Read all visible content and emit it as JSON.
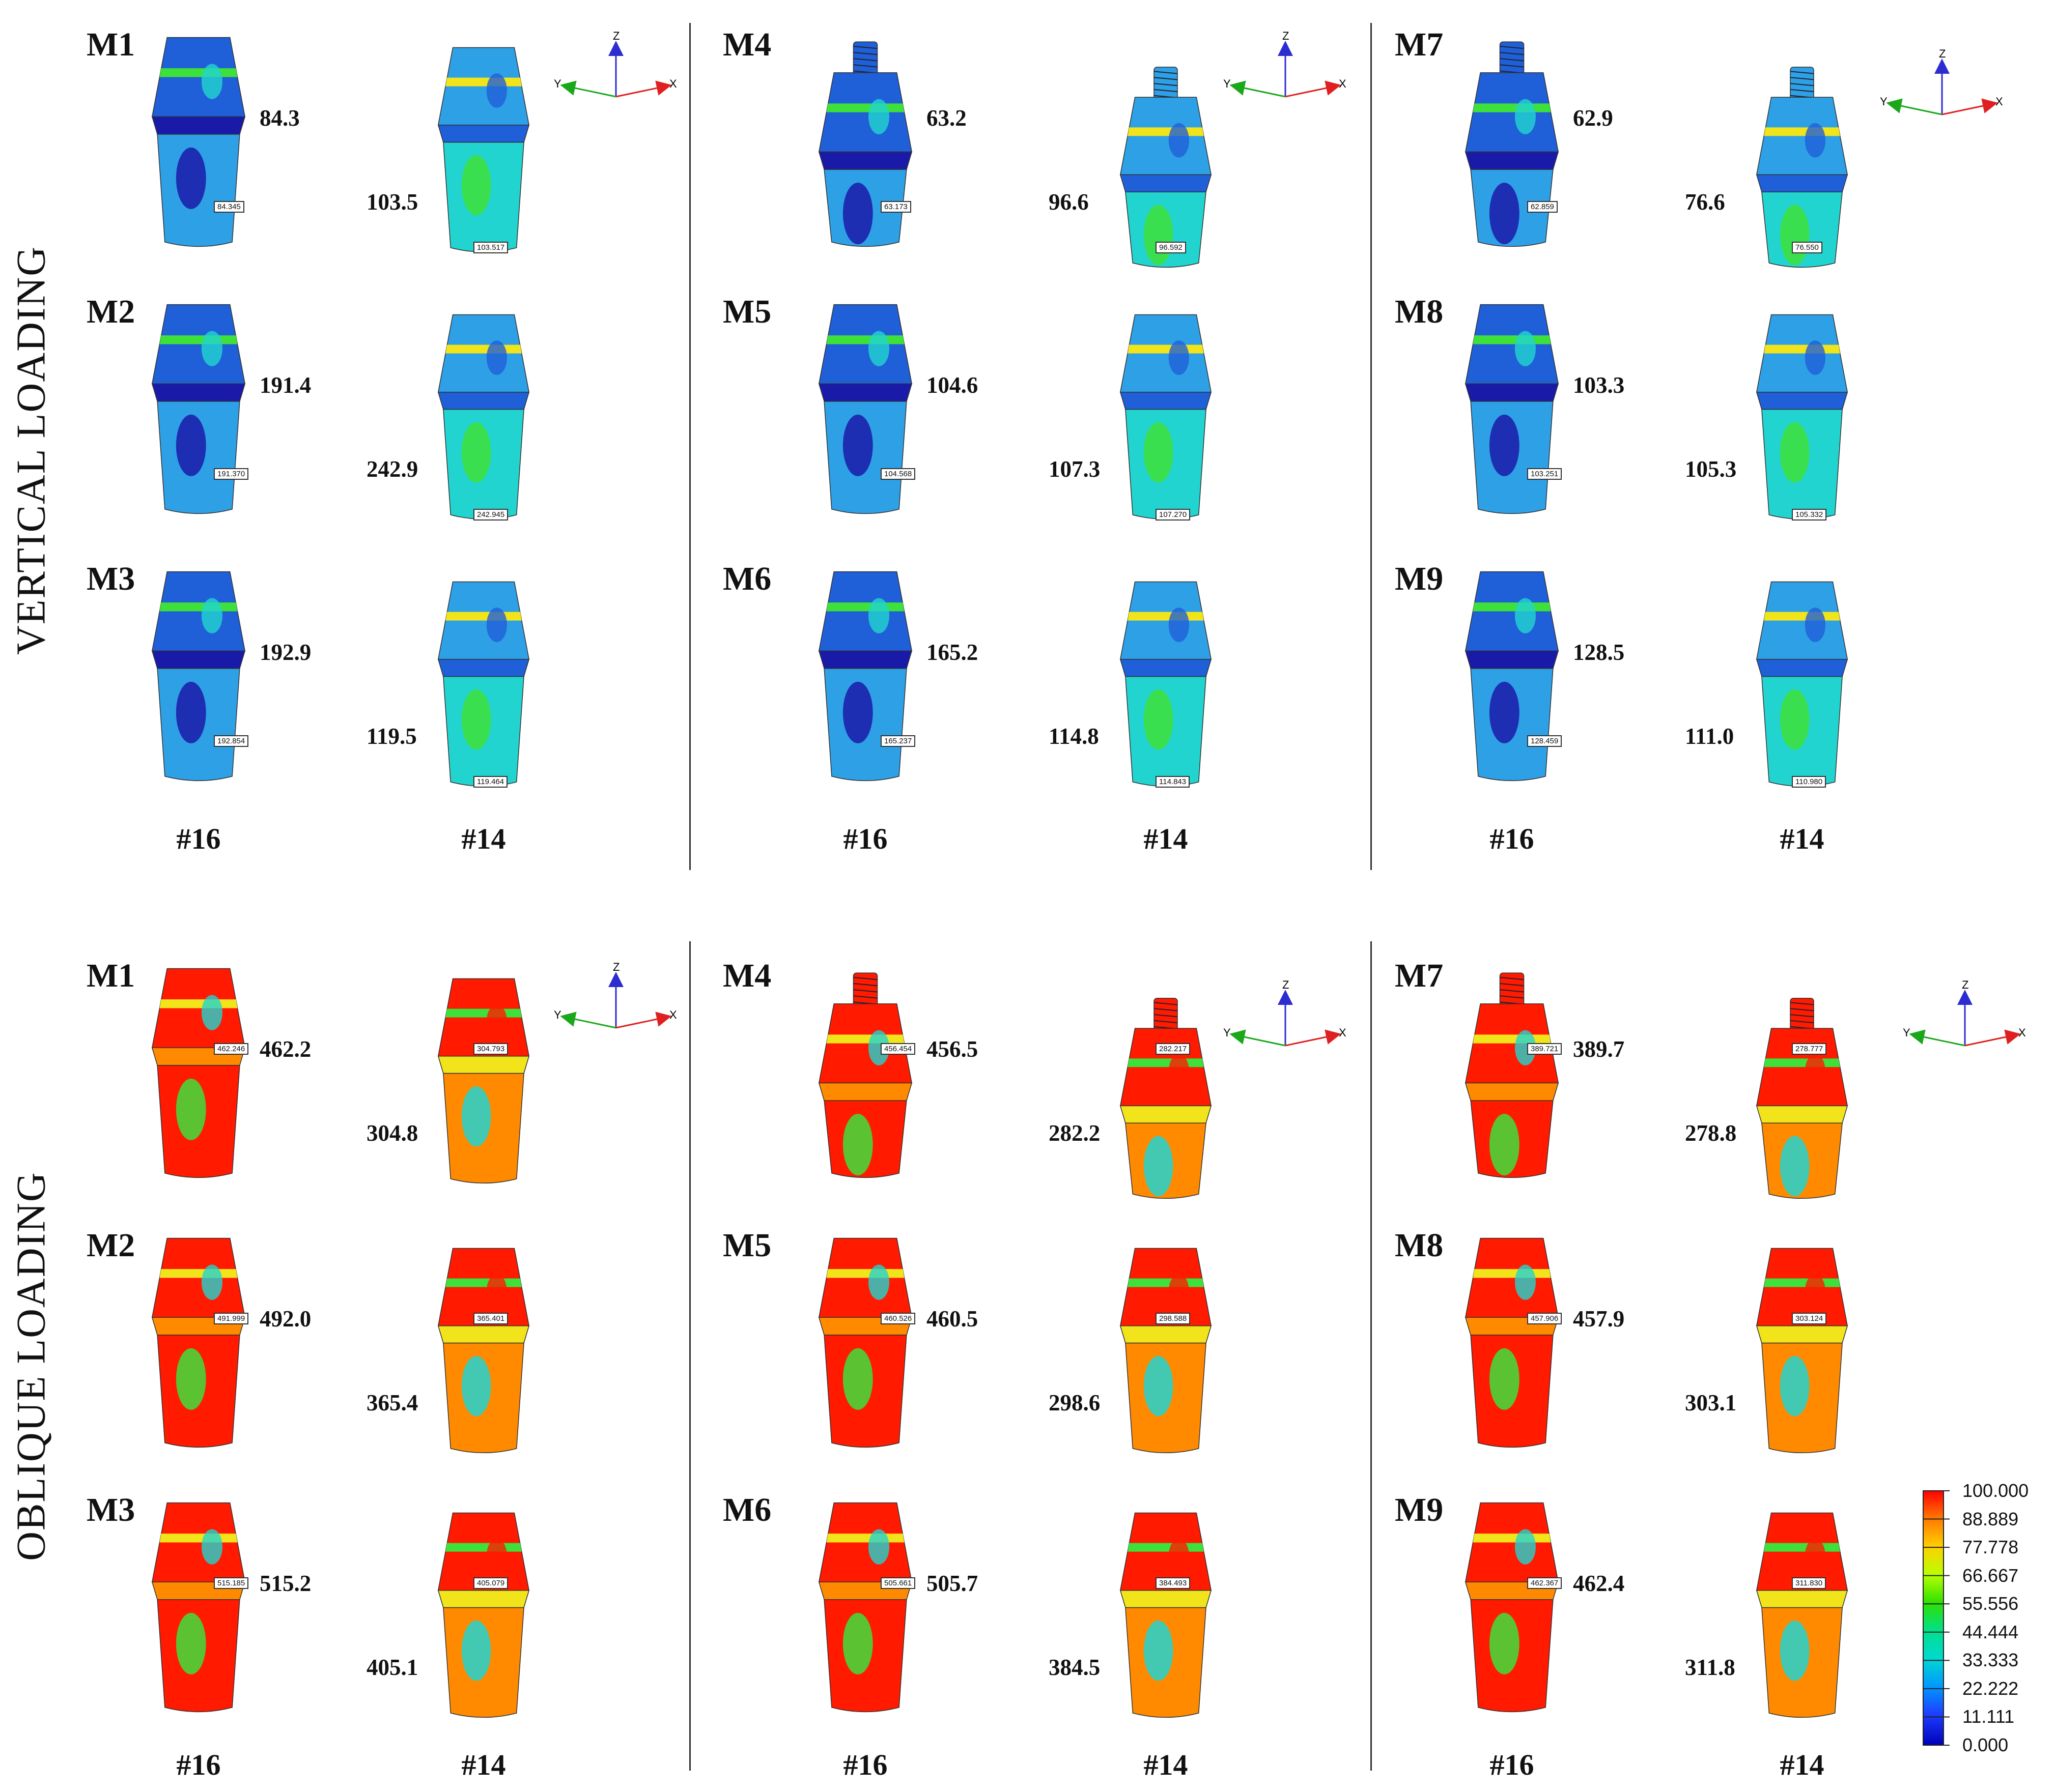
{
  "section_titles": {
    "vertical": "VERTICAL LOADING",
    "oblique": "OBLIQUE LOADING"
  },
  "tooth_labels": {
    "t16": "#16",
    "t14": "#14"
  },
  "models": {
    "vertical": {
      "M1": {
        "name": "M1",
        "v16": "84.3",
        "tag16": "84.345",
        "v14": "103.5",
        "tag14": "103.517"
      },
      "M2": {
        "name": "M2",
        "v16": "191.4",
        "tag16": "191.370",
        "v14": "242.9",
        "tag14": "242.945"
      },
      "M3": {
        "name": "M3",
        "v16": "192.9",
        "tag16": "192.854",
        "v14": "119.5",
        "tag14": "119.464"
      },
      "M4": {
        "name": "M4",
        "v16": "63.2",
        "tag16": "63.173",
        "v14": "96.6",
        "tag14": "96.592"
      },
      "M5": {
        "name": "M5",
        "v16": "104.6",
        "tag16": "104.568",
        "v14": "107.3",
        "tag14": "107.270"
      },
      "M6": {
        "name": "M6",
        "v16": "165.2",
        "tag16": "165.237",
        "v14": "114.8",
        "tag14": "114.843"
      },
      "M7": {
        "name": "M7",
        "v16": "62.9",
        "tag16": "62.859",
        "v14": "76.6",
        "tag14": "76.550"
      },
      "M8": {
        "name": "M8",
        "v16": "103.3",
        "tag16": "103.251",
        "v14": "105.3",
        "tag14": "105.332"
      },
      "M9": {
        "name": "M9",
        "v16": "128.5",
        "tag16": "128.459",
        "v14": "111.0",
        "tag14": "110.980"
      }
    },
    "oblique": {
      "M1": {
        "name": "M1",
        "v16": "462.2",
        "tag16": "462.246",
        "v14": "304.8",
        "tag14": "304.793"
      },
      "M2": {
        "name": "M2",
        "v16": "492.0",
        "tag16": "491.999",
        "v14": "365.4",
        "tag14": "365.401"
      },
      "M3": {
        "name": "M3",
        "v16": "515.2",
        "tag16": "515.185",
        "v14": "405.1",
        "tag14": "405.079"
      },
      "M4": {
        "name": "M4",
        "v16": "456.5",
        "tag16": "456.454",
        "v14": "282.2",
        "tag14": "282.217"
      },
      "M5": {
        "name": "M5",
        "v16": "460.5",
        "tag16": "460.526",
        "v14": "298.6",
        "tag14": "298.588"
      },
      "M6": {
        "name": "M6",
        "v16": "505.7",
        "tag16": "505.661",
        "v14": "384.5",
        "tag14": "384.493"
      },
      "M7": {
        "name": "M7",
        "v16": "389.7",
        "tag16": "389.721",
        "v14": "278.8",
        "tag14": "278.777"
      },
      "M8": {
        "name": "M8",
        "v16": "457.9",
        "tag16": "457.906",
        "v14": "303.1",
        "tag14": "303.124"
      },
      "M9": {
        "name": "M9",
        "v16": "462.4",
        "tag16": "462.367",
        "v14": "311.8",
        "tag14": "311.830"
      }
    }
  },
  "axis_triad": {
    "z": "Z",
    "y": "Y",
    "x": "X"
  },
  "legend": {
    "ticks": [
      "100.000",
      "88.889",
      "77.778",
      "66.667",
      "55.556",
      "44.444",
      "33.333",
      "22.222",
      "11.111",
      "0.000"
    ],
    "colors": [
      "#ff0000",
      "#ff7a00",
      "#ffd000",
      "#b8ff00",
      "#2fe000",
      "#00e08a",
      "#00d8d0",
      "#0098ff",
      "#1d3dff",
      "#0000b8"
    ]
  },
  "colors": {
    "deep_blue": "#1a1aa8",
    "blue": "#1f5fd8",
    "light_blue": "#2ea0e6",
    "cyan": "#22d4d0",
    "green": "#3ee03a",
    "yellow": "#f2e41a",
    "orange": "#ff8a00",
    "red": "#ff1a00"
  }
}
